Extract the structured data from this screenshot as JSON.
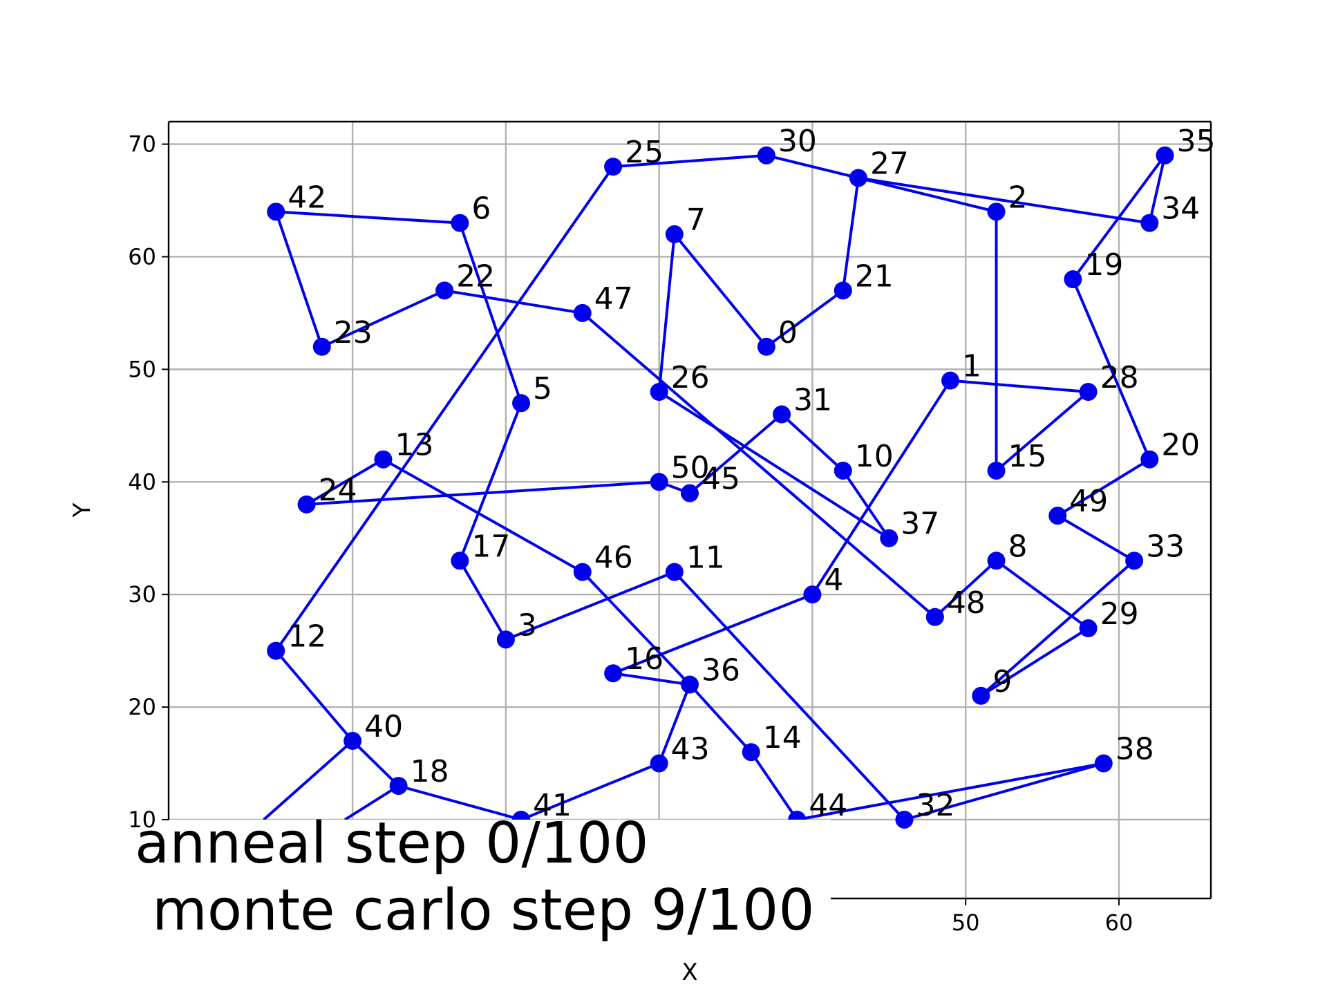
{
  "chart_data": {
    "type": "line",
    "title": "",
    "xlabel": "X",
    "ylabel": "Y",
    "xlim": [
      -2,
      66
    ],
    "ylim": [
      3,
      72
    ],
    "x_ticks": [
      50,
      60
    ],
    "y_ticks": [
      10,
      20,
      30,
      40,
      50,
      60,
      70
    ],
    "grid_x": [
      10,
      20,
      30,
      40,
      50,
      60
    ],
    "grid": true,
    "legend": "none",
    "line_color": "#0000ee",
    "marker_color": "#0000ee",
    "overlay_line1": "anneal step 0/100",
    "overlay_line2": "monte carlo step 9/100",
    "points": [
      {
        "label": "0",
        "x": 37,
        "y": 52
      },
      {
        "label": "1",
        "x": 49,
        "y": 49
      },
      {
        "label": "2",
        "x": 52,
        "y": 64
      },
      {
        "label": "3",
        "x": 20,
        "y": 26
      },
      {
        "label": "4",
        "x": 40,
        "y": 30
      },
      {
        "label": "5",
        "x": 21,
        "y": 47
      },
      {
        "label": "6",
        "x": 17,
        "y": 63
      },
      {
        "label": "7",
        "x": 31,
        "y": 62
      },
      {
        "label": "8",
        "x": 52,
        "y": 33
      },
      {
        "label": "9",
        "x": 51,
        "y": 21
      },
      {
        "label": "10",
        "x": 42,
        "y": 41
      },
      {
        "label": "11",
        "x": 31,
        "y": 32
      },
      {
        "label": "12",
        "x": 5,
        "y": 25
      },
      {
        "label": "13",
        "x": 12,
        "y": 42
      },
      {
        "label": "14",
        "x": 36,
        "y": 16
      },
      {
        "label": "15",
        "x": 52,
        "y": 41
      },
      {
        "label": "16",
        "x": 27,
        "y": 23
      },
      {
        "label": "17",
        "x": 17,
        "y": 33
      },
      {
        "label": "18",
        "x": 13,
        "y": 13
      },
      {
        "label": "19",
        "x": 57,
        "y": 58
      },
      {
        "label": "20",
        "x": 62,
        "y": 42
      },
      {
        "label": "21",
        "x": 42,
        "y": 57
      },
      {
        "label": "22",
        "x": 16,
        "y": 57
      },
      {
        "label": "23",
        "x": 8,
        "y": 52
      },
      {
        "label": "24",
        "x": 7,
        "y": 38
      },
      {
        "label": "25",
        "x": 27,
        "y": 68
      },
      {
        "label": "26",
        "x": 30,
        "y": 48
      },
      {
        "label": "27",
        "x": 43,
        "y": 67
      },
      {
        "label": "28",
        "x": 58,
        "y": 48
      },
      {
        "label": "29",
        "x": 58,
        "y": 27
      },
      {
        "label": "30",
        "x": 37,
        "y": 69
      },
      {
        "label": "31",
        "x": 38,
        "y": 46
      },
      {
        "label": "32",
        "x": 46,
        "y": 10
      },
      {
        "label": "33",
        "x": 61,
        "y": 33
      },
      {
        "label": "34",
        "x": 62,
        "y": 63
      },
      {
        "label": "35",
        "x": 63,
        "y": 69
      },
      {
        "label": "36",
        "x": 32,
        "y": 22
      },
      {
        "label": "37",
        "x": 45,
        "y": 35
      },
      {
        "label": "38",
        "x": 59,
        "y": 15
      },
      {
        "label": "40",
        "x": 10,
        "y": 17
      },
      {
        "label": "41",
        "x": 21,
        "y": 10
      },
      {
        "label": "42",
        "x": 5,
        "y": 64
      },
      {
        "label": "43",
        "x": 30,
        "y": 15
      },
      {
        "label": "44",
        "x": 39,
        "y": 10
      },
      {
        "label": "45",
        "x": 32,
        "y": 39
      },
      {
        "label": "46",
        "x": 25,
        "y": 32
      },
      {
        "label": "47",
        "x": 25,
        "y": 55
      },
      {
        "label": "48",
        "x": 48,
        "y": 28
      },
      {
        "label": "49",
        "x": 56,
        "y": 37
      },
      {
        "label": "50",
        "x": 30,
        "y": 40
      }
    ],
    "edges": [
      [
        "42",
        "6"
      ],
      [
        "6",
        "5"
      ],
      [
        "5",
        "17"
      ],
      [
        "17",
        "3"
      ],
      [
        "3",
        "11"
      ],
      [
        "11",
        "32"
      ],
      [
        "32",
        "38"
      ],
      [
        "38",
        "44"
      ],
      [
        "44",
        "14"
      ],
      [
        "14",
        "36"
      ],
      [
        "36",
        "16"
      ],
      [
        "16",
        "4"
      ],
      [
        "4",
        "1"
      ],
      [
        "1",
        "28"
      ],
      [
        "28",
        "15"
      ],
      [
        "15",
        "2"
      ],
      [
        "2",
        "27"
      ],
      [
        "27",
        "30"
      ],
      [
        "30",
        "25"
      ],
      [
        "25",
        "12"
      ],
      [
        "12",
        "40"
      ],
      [
        "40",
        "18"
      ],
      [
        "18",
        "41"
      ],
      [
        "41",
        "43"
      ],
      [
        "43",
        "36"
      ],
      [
        "36",
        "46"
      ],
      [
        "46",
        "13"
      ],
      [
        "13",
        "24"
      ],
      [
        "24",
        "50"
      ],
      [
        "50",
        "45"
      ],
      [
        "45",
        "31"
      ],
      [
        "31",
        "10"
      ],
      [
        "10",
        "37"
      ],
      [
        "37",
        "26"
      ],
      [
        "26",
        "7"
      ],
      [
        "7",
        "0"
      ],
      [
        "0",
        "21"
      ],
      [
        "21",
        "27"
      ],
      [
        "27",
        "34"
      ],
      [
        "34",
        "35"
      ],
      [
        "35",
        "19"
      ],
      [
        "19",
        "20"
      ],
      [
        "20",
        "49"
      ],
      [
        "49",
        "33"
      ],
      [
        "33",
        "9"
      ],
      [
        "9",
        "29"
      ],
      [
        "29",
        "8"
      ],
      [
        "8",
        "48"
      ],
      [
        "48",
        "47"
      ],
      [
        "47",
        "22"
      ],
      [
        "22",
        "23"
      ],
      [
        "23",
        "42"
      ]
    ],
    "stubs": [
      {
        "from": "40",
        "toward": {
          "x": 4.2,
          "y": 10
        }
      },
      {
        "from": "18",
        "toward": {
          "x": 9.5,
          "y": 10
        }
      }
    ]
  }
}
